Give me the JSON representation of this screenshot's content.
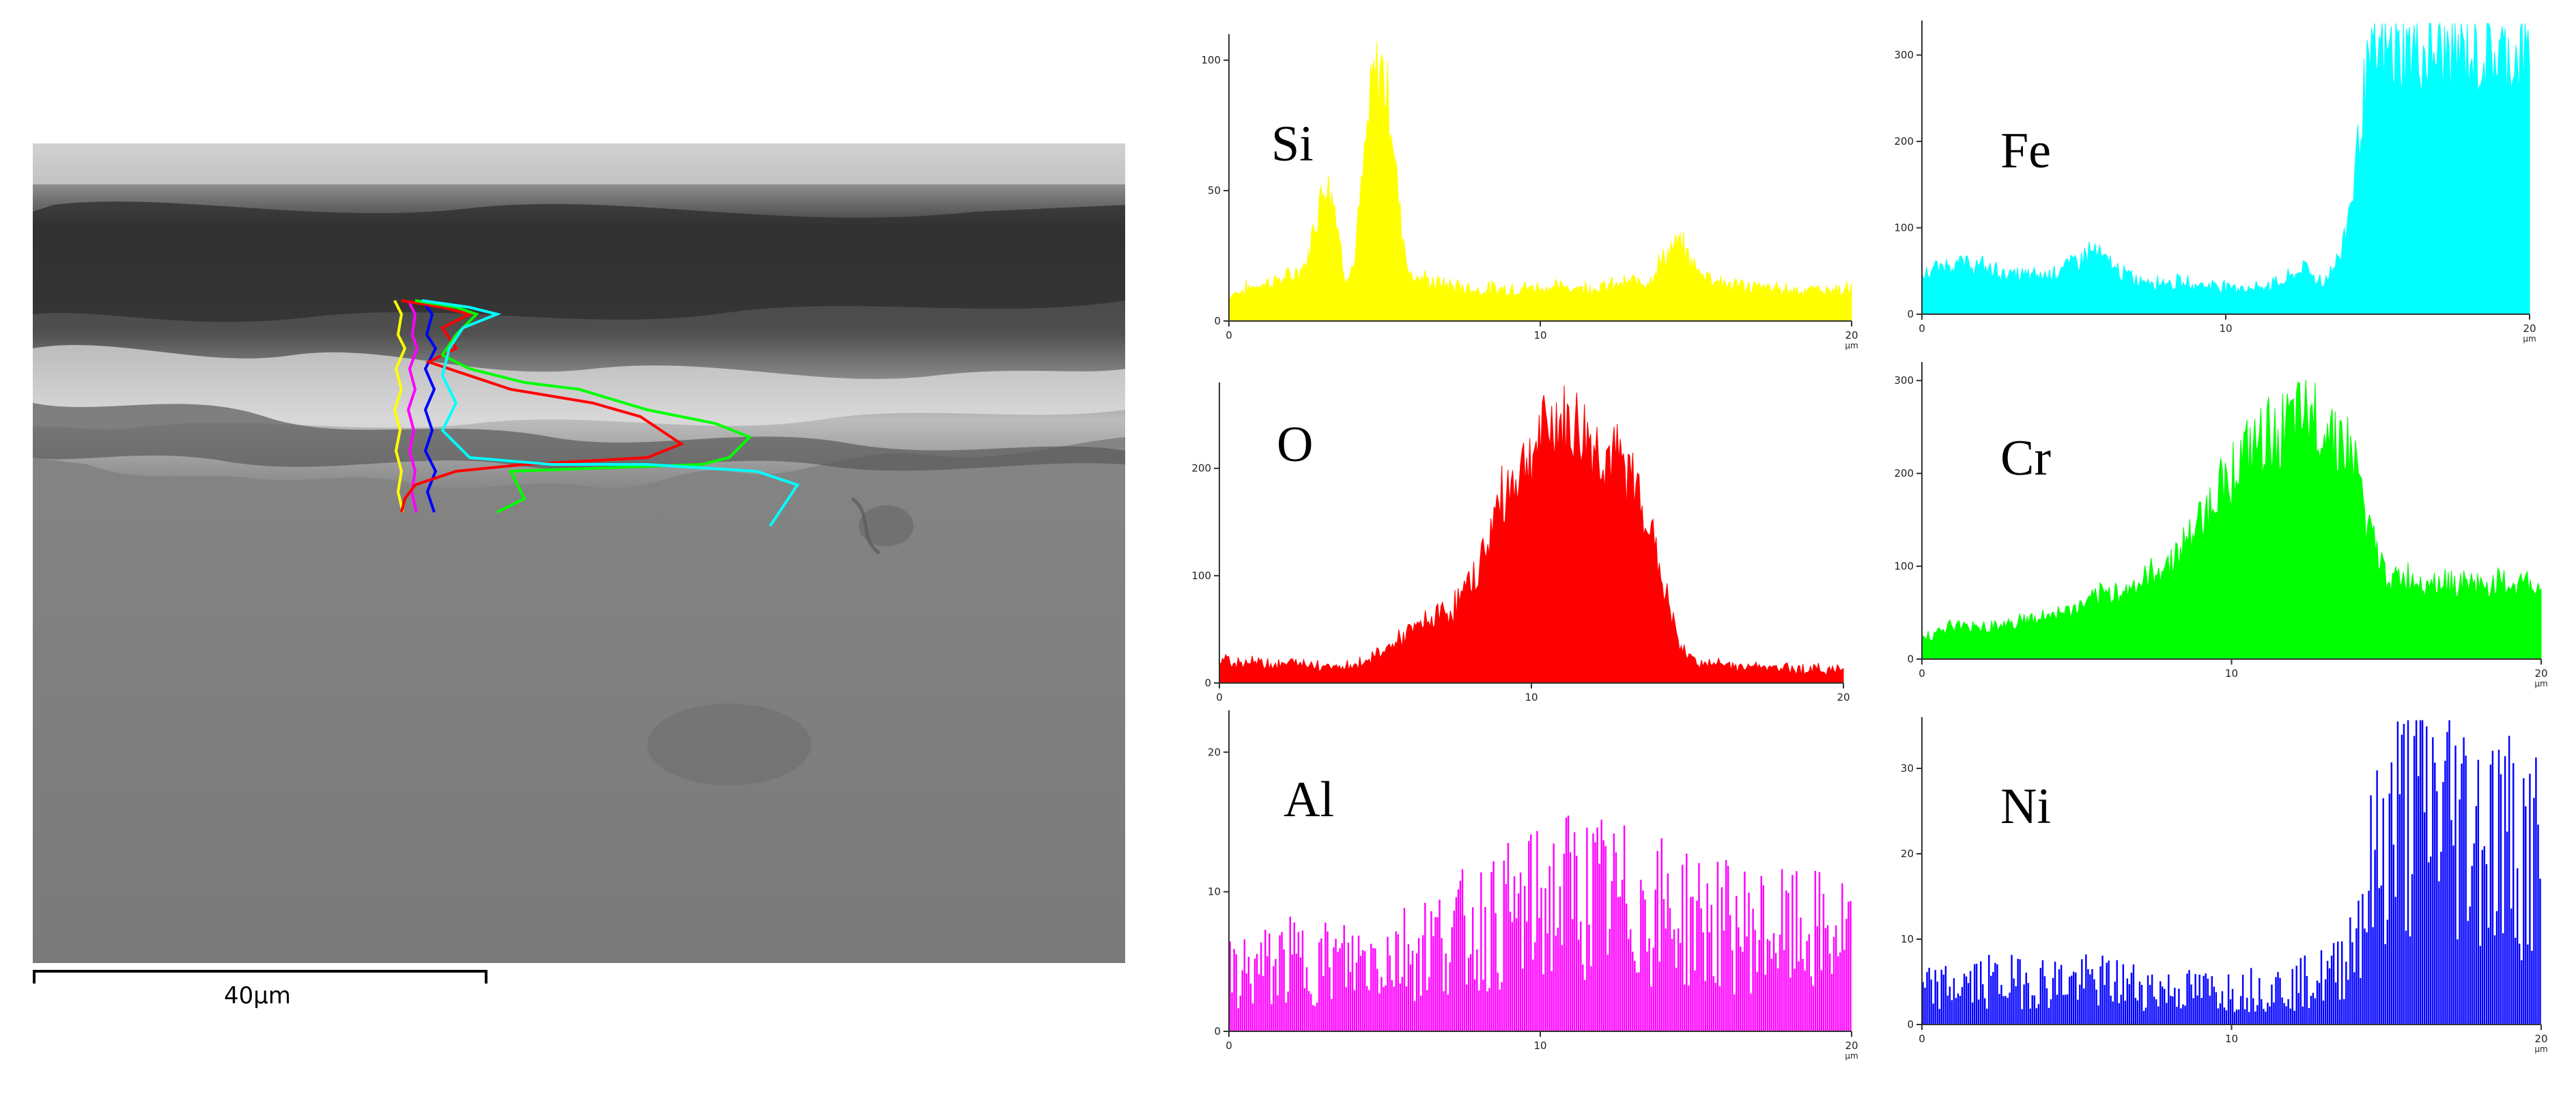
{
  "scale_bar": {
    "label": "40µm"
  },
  "chart_data": [
    {
      "type": "area",
      "element_label": "Si",
      "color": "#ffff00",
      "x_range": [
        0,
        20
      ],
      "ylim": [
        0,
        110
      ],
      "x_ticks": [
        0,
        10,
        20
      ],
      "y_ticks": [
        0,
        50,
        100
      ],
      "x_unit": "µm",
      "profile_x": [
        0,
        1,
        2,
        2.5,
        2.8,
        3.1,
        3.4,
        3.7,
        4.0,
        4.3,
        4.6,
        4.9,
        5.2,
        5.5,
        5.8,
        6.5,
        8,
        10,
        12,
        13.5,
        14,
        14.5,
        15,
        16,
        18,
        20
      ],
      "profile_y": [
        10,
        14,
        17,
        22,
        40,
        55,
        45,
        18,
        20,
        55,
        90,
        98,
        80,
        40,
        18,
        15,
        12,
        13,
        13,
        16,
        25,
        30,
        20,
        14,
        12,
        12
      ]
    },
    {
      "type": "area",
      "element_label": "Fe",
      "color": "#00ffff",
      "x_range": [
        0,
        20
      ],
      "ylim": [
        0,
        340
      ],
      "x_ticks": [
        0,
        10,
        20
      ],
      "y_ticks": [
        0,
        100,
        200,
        300
      ],
      "x_unit": "µm",
      "profile_x": [
        0,
        1,
        2,
        3,
        4,
        5,
        5.6,
        6.5,
        7,
        9,
        11,
        12,
        12.6,
        13.2,
        13.8,
        14.2,
        14.6,
        15,
        16,
        18,
        20
      ],
      "profile_y": [
        45,
        60,
        55,
        45,
        45,
        60,
        75,
        50,
        40,
        35,
        30,
        40,
        55,
        35,
        70,
        150,
        270,
        300,
        305,
        300,
        300
      ]
    },
    {
      "type": "area",
      "element_label": "O",
      "color": "#ff0000",
      "x_range": [
        0,
        20
      ],
      "ylim": [
        0,
        280
      ],
      "x_ticks": [
        0,
        10,
        20
      ],
      "y_ticks": [
        0,
        100,
        200
      ],
      "x_unit": "",
      "profile_x": [
        0,
        1,
        2,
        3,
        4,
        4.8,
        5.5,
        6.5,
        7.5,
        8.3,
        9,
        10,
        10.8,
        11.5,
        12.3,
        13,
        13.6,
        14.2,
        14.8,
        15.5,
        17,
        20
      ],
      "profile_y": [
        20,
        20,
        18,
        18,
        15,
        22,
        35,
        55,
        70,
        105,
        170,
        215,
        245,
        235,
        215,
        200,
        170,
        95,
        30,
        18,
        15,
        12
      ]
    },
    {
      "type": "area",
      "element_label": "Cr",
      "color": "#00ff00",
      "x_range": [
        0,
        20
      ],
      "ylim": [
        0,
        320
      ],
      "x_ticks": [
        0,
        10,
        20
      ],
      "y_ticks": [
        0,
        100,
        200,
        300
      ],
      "x_unit": "µm",
      "profile_x": [
        0,
        1,
        2,
        3,
        4,
        5,
        6,
        7,
        8,
        8.8,
        9.5,
        10.3,
        11,
        11.8,
        12.6,
        13.4,
        14,
        14.5,
        15,
        16,
        18,
        20
      ],
      "profile_y": [
        25,
        35,
        35,
        40,
        45,
        55,
        70,
        80,
        105,
        140,
        180,
        215,
        235,
        250,
        260,
        245,
        210,
        130,
        90,
        85,
        80,
        80
      ]
    },
    {
      "type": "bar",
      "element_label": "Al",
      "color": "#ff00ff",
      "x_range": [
        0,
        20
      ],
      "ylim": [
        0,
        23
      ],
      "x_ticks": [
        0,
        10,
        20
      ],
      "y_ticks": [
        0,
        10,
        20
      ],
      "x_unit": "µm",
      "profile_x": [
        0,
        2,
        4,
        6,
        8,
        10,
        11,
        12,
        14,
        16,
        18,
        20
      ],
      "profile_y": [
        4,
        5,
        5,
        6,
        7.5,
        9,
        10,
        9.5,
        8.5,
        7.5,
        7,
        7
      ]
    },
    {
      "type": "bar",
      "element_label": "Ni",
      "color": "#0000ff",
      "x_range": [
        0,
        20
      ],
      "ylim": [
        0,
        36
      ],
      "x_ticks": [
        0,
        10,
        20
      ],
      "y_ticks": [
        0,
        10,
        20,
        30
      ],
      "x_unit": "µm",
      "profile_x": [
        0,
        2,
        4,
        6,
        8,
        10,
        12,
        13.3,
        13.8,
        14.4,
        15,
        16,
        17,
        18,
        20
      ],
      "profile_y": [
        4,
        5,
        5,
        5,
        4,
        4,
        4.5,
        6,
        9,
        16,
        22,
        26,
        25,
        23,
        20
      ]
    }
  ]
}
